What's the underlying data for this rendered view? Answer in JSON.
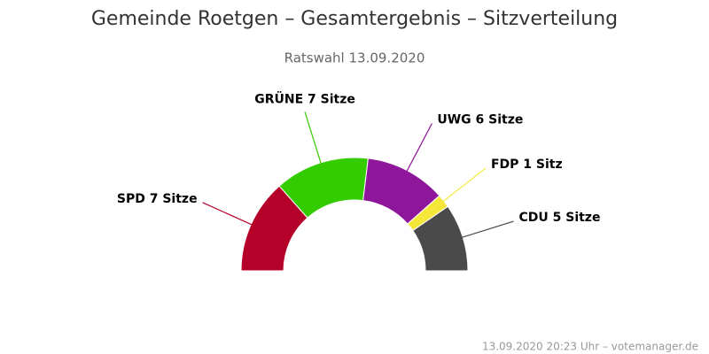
{
  "chart_data": {
    "type": "semi-donut",
    "title": "Gemeinde Roetgen – Gesamtergebnis – Sitzverteilung",
    "subtitle": "Ratswahl 13.09.2020",
    "values": [
      7,
      7,
      6,
      1,
      5
    ],
    "value_labels": [
      "SPD 7 Sitze",
      "GRÜNE 7 Sitze",
      "UWG 6 Sitze",
      "FDP 1 Sitz",
      "CDU 5 Sitze"
    ],
    "colors": [
      "#b5002a",
      "#33cc00",
      "#8e169a",
      "#f5e73a",
      "#4a4a4a"
    ],
    "credits": "13.09.2020 20:23 Uhr – votemanager.de"
  }
}
